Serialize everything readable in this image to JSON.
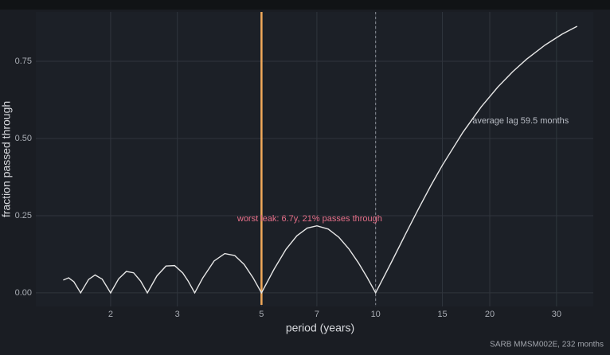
{
  "chart_data": {
    "type": "line",
    "x_label": "period (years)",
    "y_label": "fraction passed through",
    "caption": "SARB MMSM002E, 232 months",
    "log_x": true,
    "grid": true,
    "xlim": [
      1.27,
      37.5
    ],
    "ylim": [
      -0.044,
      0.91
    ],
    "xticks": [
      2,
      3,
      5,
      7,
      10,
      15,
      20,
      30
    ],
    "yticks": [
      {
        "value": 0,
        "label": "0.00"
      },
      {
        "value": 0.25,
        "label": "0.25"
      },
      {
        "value": 0.5,
        "label": "0.50"
      },
      {
        "value": 0.75,
        "label": "0.75"
      }
    ],
    "x": [
      1.5,
      1.55,
      1.6,
      1.667,
      1.75,
      1.82,
      1.9,
      2.0,
      2.1,
      2.2,
      2.3,
      2.4,
      2.5,
      2.65,
      2.8,
      2.95,
      3.1,
      3.2,
      3.333,
      3.5,
      3.75,
      4,
      4.25,
      4.5,
      4.75,
      5,
      5.4,
      5.8,
      6.2,
      6.6,
      7,
      7.5,
      8,
      8.5,
      9,
      9.5,
      10,
      11,
      12,
      13,
      14,
      15,
      17,
      19,
      21,
      23,
      25,
      28,
      31,
      34
    ],
    "series": [
      {
        "color": "#e6e6e6",
        "values": [
          0.0414,
          0.0488,
          0.036,
          0,
          0.0435,
          0.0579,
          0.0445,
          0,
          0.0455,
          0.0693,
          0.065,
          0.0382,
          0,
          0.055,
          0.0869,
          0.0884,
          0.0643,
          0.039,
          0,
          0.0483,
          0.1034,
          0.1273,
          0.121,
          0.0921,
          0.049,
          0,
          0.0772,
          0.1409,
          0.1851,
          0.2099,
          0.2172,
          0.2067,
          0.18,
          0.1426,
          0.098,
          0.0498,
          0,
          0.0988,
          0.191,
          0.2743,
          0.3485,
          0.4135,
          0.5205,
          0.6029,
          0.6666,
          0.7167,
          0.7568,
          0.803,
          0.8378,
          0.8637
        ]
      }
    ],
    "vlines": [
      {
        "x": 5,
        "color": "#f0a95a",
        "style": "solid"
      },
      {
        "x": 10,
        "color": "#8a8f98",
        "style": "dashed"
      }
    ],
    "annotations": [
      {
        "text": "worst leak: 6.7y, 21% passes through",
        "x": 6.7,
        "y": 0.24,
        "color": "#e8708a",
        "anchor": "middle"
      },
      {
        "text": "average lag 59.5 months",
        "x": 18,
        "y": 0.557,
        "color": "#b8bcc4",
        "anchor": "start"
      }
    ]
  }
}
